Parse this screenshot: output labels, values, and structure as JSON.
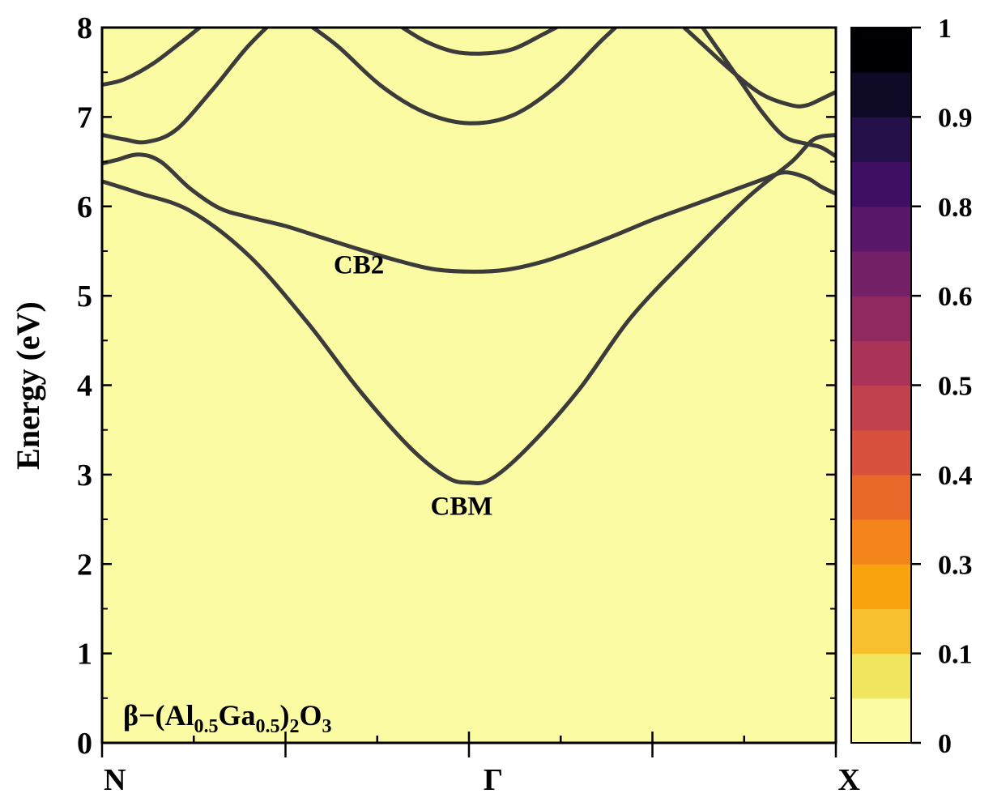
{
  "chart_data": {
    "type": "line",
    "title": "",
    "material": {
      "prefix": "β−(Al",
      "sub1": "0.5",
      "mid": "Ga",
      "sub2": "0.5",
      "paren": ")",
      "sub3": "2",
      "o": "O",
      "sub4": "3"
    },
    "ylabel": "Energy (eV)",
    "xlabel": "",
    "ylim": [
      0,
      8
    ],
    "xlim": [
      0,
      1
    ],
    "yticks": [
      "0",
      "1",
      "2",
      "3",
      "4",
      "5",
      "6",
      "7",
      "8"
    ],
    "xticks": [
      {
        "pos": 0,
        "label": "N"
      },
      {
        "pos": 0.5,
        "label": "Γ"
      },
      {
        "pos": 1,
        "label": "X"
      }
    ],
    "annotations": [
      {
        "text": "CB2",
        "x": 0.35,
        "y": 5.25
      },
      {
        "text": "CBM",
        "x": 0.49,
        "y": 2.55
      }
    ],
    "background_color": "#fbfba4",
    "line_color": "#3c3b3b",
    "colorbar": {
      "ticks": [
        "0",
        "0.1",
        "0.3",
        "0.4",
        "0.5",
        "0.6",
        "0.8",
        "0.9",
        "1"
      ],
      "tick_values": [
        0,
        0.125,
        0.25,
        0.375,
        0.5,
        0.625,
        0.75,
        0.875,
        1
      ],
      "colors": [
        "#fbfba4",
        "#f1e65f",
        "#f7c12d",
        "#f9a30f",
        "#f4851a",
        "#e9692a",
        "#d8503e",
        "#c2414e",
        "#a93457",
        "#8f295f",
        "#742066",
        "#591869",
        "#3e0f63",
        "#25104a",
        "#0f0a26",
        "#000004"
      ]
    },
    "series": [
      {
        "x": [
          0,
          0.05,
          0.12,
          0.2,
          0.28,
          0.35,
          0.42,
          0.47,
          0.5,
          0.53,
          0.58,
          0.65,
          0.72,
          0.8,
          0.88,
          0.94,
          0.97,
          1.0
        ],
        "y": [
          6.28,
          6.15,
          5.95,
          5.45,
          4.7,
          3.95,
          3.3,
          2.97,
          2.91,
          2.95,
          3.3,
          3.95,
          4.75,
          5.45,
          6.1,
          6.5,
          6.75,
          6.8
        ]
      },
      {
        "x": [
          0,
          0.02,
          0.05,
          0.08,
          0.12,
          0.16,
          0.2,
          0.25,
          0.3,
          0.35,
          0.4,
          0.45,
          0.5,
          0.55,
          0.6,
          0.65,
          0.7,
          0.75,
          0.8,
          0.85,
          0.9,
          0.93,
          0.96,
          0.98,
          1.0
        ],
        "y": [
          6.48,
          6.52,
          6.58,
          6.5,
          6.2,
          5.98,
          5.88,
          5.78,
          5.65,
          5.52,
          5.4,
          5.3,
          5.27,
          5.29,
          5.38,
          5.52,
          5.68,
          5.85,
          6.0,
          6.15,
          6.3,
          6.38,
          6.32,
          6.22,
          6.14
        ]
      },
      {
        "x": [
          0,
          0.03,
          0.06,
          0.1,
          0.15,
          0.2,
          0.25
        ],
        "y": [
          6.8,
          6.75,
          6.72,
          6.85,
          7.3,
          7.8,
          8.2
        ]
      },
      {
        "x": [
          0,
          0.03,
          0.07,
          0.11,
          0.15,
          0.18
        ],
        "y": [
          7.36,
          7.42,
          7.6,
          7.85,
          8.1,
          8.2
        ]
      },
      {
        "x": [
          0.27,
          0.32,
          0.38,
          0.44,
          0.5,
          0.56,
          0.62,
          0.68,
          0.72
        ],
        "y": [
          8.1,
          7.8,
          7.35,
          7.05,
          6.93,
          7.02,
          7.35,
          7.85,
          8.15
        ]
      },
      {
        "x": [
          0.4,
          0.44,
          0.48,
          0.52,
          0.56,
          0.6,
          0.63
        ],
        "y": [
          8.05,
          7.85,
          7.73,
          7.71,
          7.76,
          7.92,
          8.05
        ]
      },
      {
        "x": [
          0.78,
          0.82,
          0.86,
          0.9,
          0.94,
          0.96,
          0.98,
          1.0
        ],
        "y": [
          8.1,
          7.8,
          7.5,
          7.25,
          7.13,
          7.13,
          7.2,
          7.28
        ]
      },
      {
        "x": [
          0.81,
          0.84,
          0.87,
          0.9,
          0.93,
          0.96,
          0.98,
          1.0
        ],
        "y": [
          8.1,
          7.75,
          7.4,
          7.05,
          6.78,
          6.7,
          6.66,
          6.56
        ]
      }
    ]
  }
}
